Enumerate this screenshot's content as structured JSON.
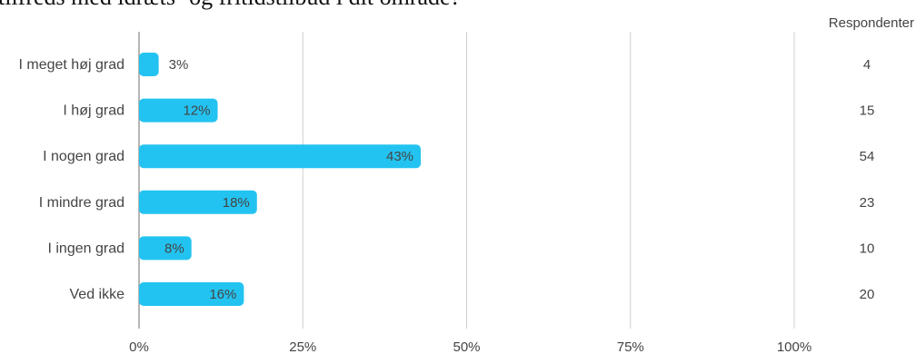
{
  "chart_data": {
    "type": "bar",
    "orientation": "horizontal",
    "title": "tilfreds med idræts- og fritidstilbud i dit område?",
    "categories": [
      "I meget høj grad",
      "I høj grad",
      "I nogen grad",
      "I mindre grad",
      "I ingen grad",
      "Ved ikke"
    ],
    "values": [
      3,
      12,
      43,
      18,
      8,
      16
    ],
    "value_labels": [
      "3%",
      "12%",
      "43%",
      "18%",
      "8%",
      "16%"
    ],
    "respondents_header": "Respondenter",
    "respondents": [
      4,
      15,
      54,
      23,
      10,
      20
    ],
    "x_ticks": [
      "0%",
      "25%",
      "50%",
      "75%",
      "100%"
    ],
    "xlim": [
      0,
      100
    ],
    "bar_color": "#23c3f1",
    "grid": true
  }
}
